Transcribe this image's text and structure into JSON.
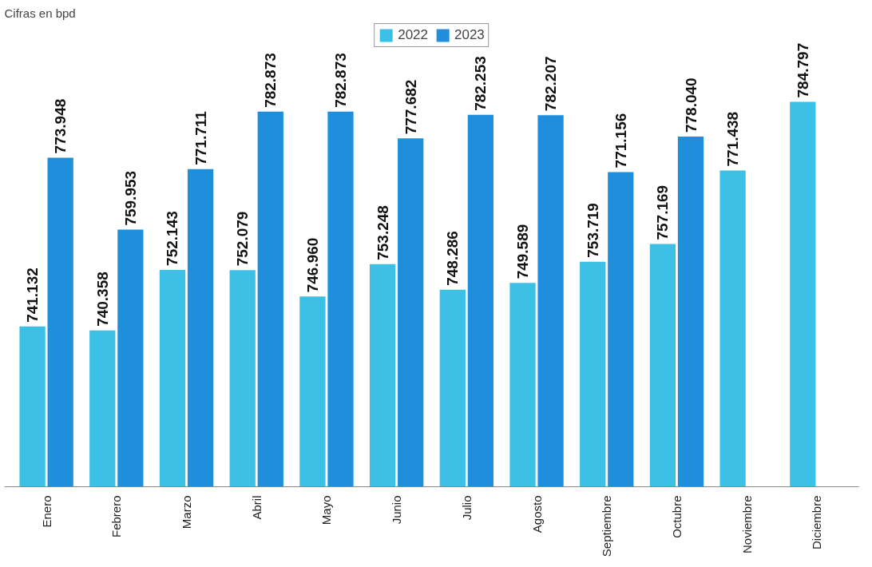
{
  "chart_data": {
    "type": "bar",
    "annotations": [
      "Cifras en bpd"
    ],
    "categories": [
      "Enero",
      "Febrero",
      "Marzo",
      "Abril",
      "Mayo",
      "Junio",
      "Julio",
      "Agosto",
      "Septiembre",
      "Octubre",
      "Noviembre",
      "Diciembre"
    ],
    "series": [
      {
        "name": "2022",
        "color": "#3cc0e6",
        "values": [
          741.132,
          740.358,
          752.143,
          752.079,
          746.96,
          753.248,
          748.286,
          749.589,
          753.719,
          757.169,
          771.438,
          784.797
        ],
        "value_labels": [
          "741.132",
          "740.358",
          "752.143",
          "752.079",
          "746.960",
          "753.248",
          "748.286",
          "749.589",
          "753.719",
          "757.169",
          "771.438",
          "784.797"
        ]
      },
      {
        "name": "2023",
        "color": "#1f8fdc",
        "values": [
          773.948,
          759.953,
          771.711,
          782.873,
          782.873,
          777.682,
          782.253,
          782.207,
          771.156,
          778.04,
          null,
          null
        ],
        "value_labels": [
          "773.948",
          "759.953",
          "771.711",
          "782.873",
          "782.873",
          "777.682",
          "782.253",
          "782.207",
          "771.156",
          "778.040",
          null,
          null
        ]
      }
    ],
    "ylim": [
      710,
      800
    ],
    "tick_labels": "x",
    "grid": false,
    "legend": "top"
  }
}
